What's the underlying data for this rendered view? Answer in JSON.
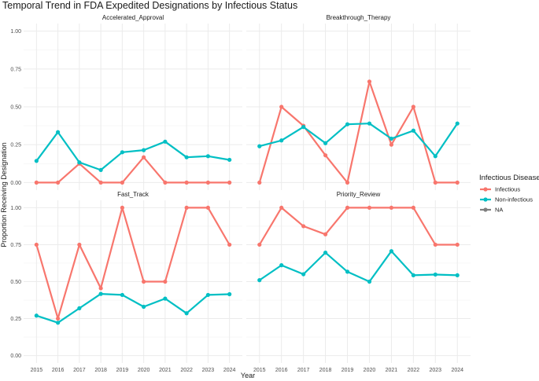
{
  "chart_data": {
    "type": "line",
    "title": "Temporal Trend in FDA Expedited Designations by Infectious Status",
    "xlabel": "Year",
    "ylabel": "Proportion Receiving Designation",
    "x": [
      2015,
      2016,
      2017,
      2018,
      2019,
      2020,
      2021,
      2022,
      2023,
      2024
    ],
    "ylim": [
      0,
      1
    ],
    "y_ticks": [
      "0.00",
      "0.25",
      "0.50",
      "0.75",
      "1.00"
    ],
    "x_ticks": [
      "2015",
      "2016",
      "2017",
      "2018",
      "2019",
      "2020",
      "2021",
      "2022",
      "2023",
      "2024"
    ],
    "grid": true,
    "legend": {
      "title": "Infectious Disease",
      "position": "right",
      "entries": [
        {
          "name": "Infectious",
          "color": "#F8766D"
        },
        {
          "name": "Non-infectious",
          "color": "#00BFC4"
        },
        {
          "name": "NA",
          "color": "#7F7F7F"
        }
      ]
    },
    "facets": [
      {
        "name": "Accelerated_Approval",
        "series": [
          {
            "name": "Infectious",
            "color": "#F8766D",
            "values": [
              0.0,
              0.0,
              0.125,
              0.0,
              0.0,
              0.167,
              0.0,
              0.0,
              0.0,
              0.0
            ]
          },
          {
            "name": "Non-infectious",
            "color": "#00BFC4",
            "values": [
              0.143,
              0.333,
              0.133,
              0.083,
              0.2,
              0.214,
              0.27,
              0.167,
              0.174,
              0.15
            ]
          }
        ]
      },
      {
        "name": "Breakthrough_Therapy",
        "series": [
          {
            "name": "Infectious",
            "color": "#F8766D",
            "values": [
              0.0,
              0.5,
              0.375,
              0.18,
              0.0,
              0.667,
              0.25,
              0.5,
              0.0,
              0.0
            ]
          },
          {
            "name": "Non-infectious",
            "color": "#00BFC4",
            "values": [
              0.24,
              0.278,
              0.367,
              0.26,
              0.385,
              0.39,
              0.29,
              0.343,
              0.174,
              0.39
            ]
          }
        ]
      },
      {
        "name": "Fast_Track",
        "series": [
          {
            "name": "Infectious",
            "color": "#F8766D",
            "values": [
              0.75,
              0.25,
              0.75,
              0.455,
              1.0,
              0.5,
              0.5,
              1.0,
              1.0,
              0.75
            ]
          },
          {
            "name": "Non-infectious",
            "color": "#00BFC4",
            "values": [
              0.27,
              0.222,
              0.32,
              0.417,
              0.41,
              0.33,
              0.385,
              0.286,
              0.41,
              0.415
            ]
          }
        ]
      },
      {
        "name": "Priority_Review",
        "series": [
          {
            "name": "Infectious",
            "color": "#F8766D",
            "values": [
              0.75,
              1.0,
              0.875,
              0.82,
              1.0,
              1.0,
              1.0,
              1.0,
              0.75,
              0.75
            ]
          },
          {
            "name": "Non-infectious",
            "color": "#00BFC4",
            "values": [
              0.51,
              0.611,
              0.55,
              0.696,
              0.567,
              0.5,
              0.706,
              0.543,
              0.548,
              0.543
            ]
          }
        ]
      }
    ]
  }
}
